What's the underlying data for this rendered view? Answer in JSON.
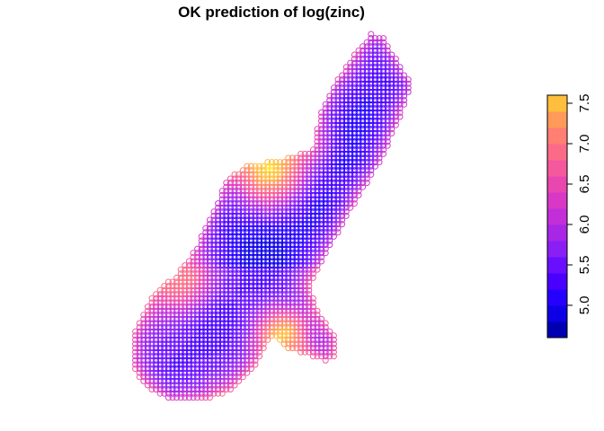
{
  "chart_data": {
    "type": "heatmap",
    "title": "OK prediction of log(zinc)",
    "xlabel": "",
    "ylabel": "",
    "marker": "circle",
    "legend": {
      "position": "right",
      "orientation": "vertical",
      "range": [
        4.6,
        7.6
      ],
      "breaks": [
        4.6,
        4.8,
        5.0,
        5.2,
        5.4,
        5.6,
        5.8,
        6.0,
        6.2,
        6.4,
        6.6,
        6.8,
        7.0,
        7.2,
        7.4,
        7.6
      ],
      "colors": [
        "#0000b3",
        "#0d00e6",
        "#2600ff",
        "#4a00ff",
        "#6a0eff",
        "#8a1ff5",
        "#a826e6",
        "#c22ed8",
        "#d838c5",
        "#ea46b0",
        "#f5589c",
        "#fb6b88",
        "#ff7f73",
        "#ff9a5a",
        "#ffbe3d",
        "#ffe51f"
      ],
      "ticks": [
        "5.0",
        "5.5",
        "6.0",
        "6.5",
        "7.0",
        "7.5"
      ],
      "tick_values": [
        5.0,
        5.5,
        6.0,
        6.5,
        7.0,
        7.5
      ]
    },
    "region": {
      "description_values": "estimated log(zinc) predictions, highest along the north-west edge and river banks, lowest in the central interior",
      "north_tip_value": 6.3,
      "north_interior_value": 5.1,
      "middle_interior_value": 4.9,
      "south_lobe_interior_value": 5.3,
      "south_edge_value": 6.6,
      "hotspot_values": [
        7.4,
        7.3,
        6.9
      ]
    }
  }
}
